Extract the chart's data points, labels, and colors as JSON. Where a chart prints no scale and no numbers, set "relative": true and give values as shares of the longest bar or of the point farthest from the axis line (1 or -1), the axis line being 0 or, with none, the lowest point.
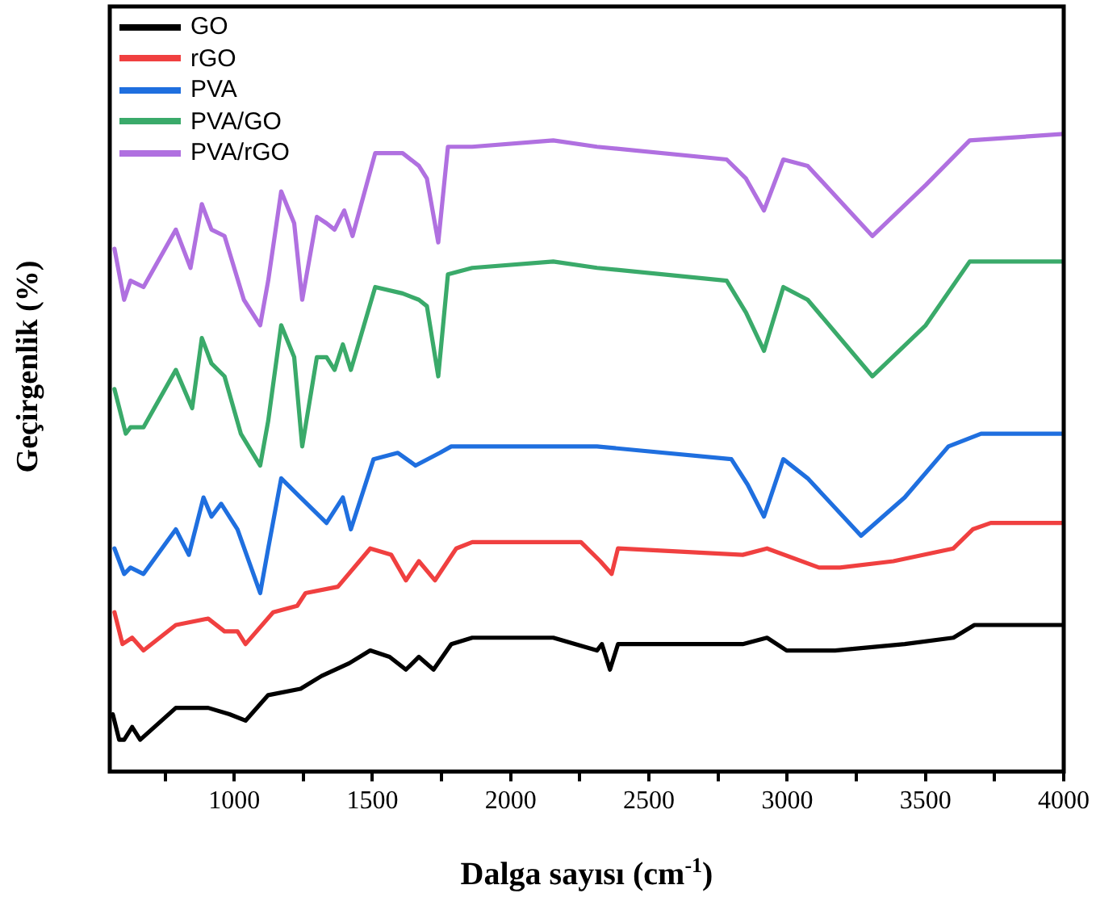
{
  "chart_data": {
    "type": "line",
    "xlabel": "Dalga sayısı (cm$^{-1}$)",
    "ylabel": "Geçirgenlik (%)",
    "relative": true,
    "legend": "top left",
    "marker": "none",
    "line_style": "solid",
    "xlim": [
      550,
      4000
    ],
    "xticks": [
      {
        "value": 750,
        "label": null
      },
      1000,
      {
        "value": 1250,
        "label": null
      },
      1500,
      {
        "value": 1750,
        "label": null
      },
      2000,
      {
        "value": 2250,
        "label": null
      },
      2500,
      {
        "value": 2750,
        "label": null
      },
      3000,
      {
        "value": 3250,
        "label": null
      },
      3500,
      {
        "value": 3750,
        "label": null
      },
      4000
    ],
    "series": [
      {
        "name": "GO",
        "color": "#000000",
        "x": [
          561,
          584,
          602,
          631,
          660,
          789,
          906,
          983,
          1041,
          1123,
          1240,
          1316,
          1416,
          1492,
          1562,
          1621,
          1668,
          1721,
          1785,
          1861,
          2154,
          2312,
          2330,
          2359,
          2388,
          2839,
          2927,
          2998,
          3173,
          3425,
          3601,
          3677,
          3994
        ],
        "values": [
          0.09,
          0.05,
          0.05,
          0.07,
          0.05,
          0.1,
          0.1,
          0.09,
          0.08,
          0.12,
          0.13,
          0.15,
          0.17,
          0.19,
          0.18,
          0.16,
          0.18,
          0.16,
          0.2,
          0.21,
          0.21,
          0.19,
          0.2,
          0.16,
          0.2,
          0.2,
          0.21,
          0.19,
          0.19,
          0.2,
          0.21,
          0.23,
          0.23
        ]
      },
      {
        "name": "rGO",
        "color": "#f04040",
        "x": [
          567,
          596,
          631,
          672,
          789,
          906,
          965,
          1012,
          1041,
          1141,
          1228,
          1258,
          1375,
          1492,
          1568,
          1621,
          1668,
          1726,
          1803,
          1861,
          2154,
          2254,
          2324,
          2365,
          2388,
          2839,
          2927,
          3115,
          3191,
          3384,
          3601,
          3671,
          3736,
          3994
        ],
        "values": [
          0.25,
          0.2,
          0.21,
          0.19,
          0.23,
          0.24,
          0.22,
          0.22,
          0.2,
          0.25,
          0.26,
          0.28,
          0.29,
          0.35,
          0.34,
          0.3,
          0.33,
          0.3,
          0.35,
          0.36,
          0.36,
          0.36,
          0.33,
          0.31,
          0.35,
          0.34,
          0.35,
          0.32,
          0.32,
          0.33,
          0.35,
          0.38,
          0.39,
          0.39
        ]
      },
      {
        "name": "PVA",
        "color": "#1f6fdf",
        "x": [
          567,
          602,
          625,
          672,
          789,
          836,
          889,
          918,
          953,
          1012,
          1094,
          1123,
          1170,
          1240,
          1334,
          1393,
          1422,
          1504,
          1592,
          1656,
          1744,
          1785,
          2312,
          2798,
          2857,
          2916,
          2986,
          3074,
          3267,
          3425,
          3583,
          3701,
          3994
        ],
        "values": [
          0.35,
          0.31,
          0.32,
          0.31,
          0.38,
          0.34,
          0.43,
          0.4,
          0.42,
          0.38,
          0.28,
          0.35,
          0.46,
          0.43,
          0.39,
          0.43,
          0.38,
          0.49,
          0.5,
          0.48,
          0.5,
          0.51,
          0.51,
          0.49,
          0.45,
          0.4,
          0.49,
          0.46,
          0.37,
          0.43,
          0.51,
          0.53,
          0.53
        ]
      },
      {
        "name": "PVA/GO",
        "color": "#3aaa6a",
        "x": [
          567,
          608,
          625,
          672,
          789,
          848,
          883,
          918,
          965,
          1024,
          1094,
          1123,
          1170,
          1217,
          1246,
          1299,
          1334,
          1363,
          1393,
          1422,
          1510,
          1609,
          1668,
          1697,
          1738,
          1773,
          1861,
          2154,
          2312,
          2781,
          2851,
          2916,
          2986,
          3074,
          3308,
          3501,
          3660,
          3994
        ],
        "values": [
          0.6,
          0.53,
          0.54,
          0.54,
          0.63,
          0.57,
          0.68,
          0.64,
          0.62,
          0.53,
          0.48,
          0.55,
          0.7,
          0.65,
          0.51,
          0.65,
          0.65,
          0.63,
          0.67,
          0.63,
          0.76,
          0.75,
          0.74,
          0.73,
          0.62,
          0.78,
          0.79,
          0.8,
          0.79,
          0.77,
          0.72,
          0.66,
          0.76,
          0.74,
          0.62,
          0.7,
          0.8,
          0.8
        ]
      },
      {
        "name": "PVA/rGO",
        "color": "#b070e0",
        "x": [
          567,
          602,
          625,
          672,
          789,
          842,
          883,
          918,
          965,
          1035,
          1094,
          1123,
          1170,
          1217,
          1246,
          1299,
          1334,
          1363,
          1398,
          1428,
          1510,
          1609,
          1668,
          1697,
          1738,
          1773,
          1861,
          2154,
          2312,
          2781,
          2851,
          2916,
          2986,
          3074,
          3308,
          3501,
          3660,
          4000
        ],
        "values": [
          0.82,
          0.74,
          0.77,
          0.76,
          0.85,
          0.79,
          0.89,
          0.85,
          0.84,
          0.74,
          0.7,
          0.77,
          0.91,
          0.86,
          0.74,
          0.87,
          0.86,
          0.85,
          0.88,
          0.84,
          0.97,
          0.97,
          0.95,
          0.93,
          0.83,
          0.98,
          0.98,
          0.99,
          0.98,
          0.96,
          0.93,
          0.88,
          0.96,
          0.95,
          0.84,
          0.92,
          0.99,
          1.0
        ]
      }
    ]
  }
}
